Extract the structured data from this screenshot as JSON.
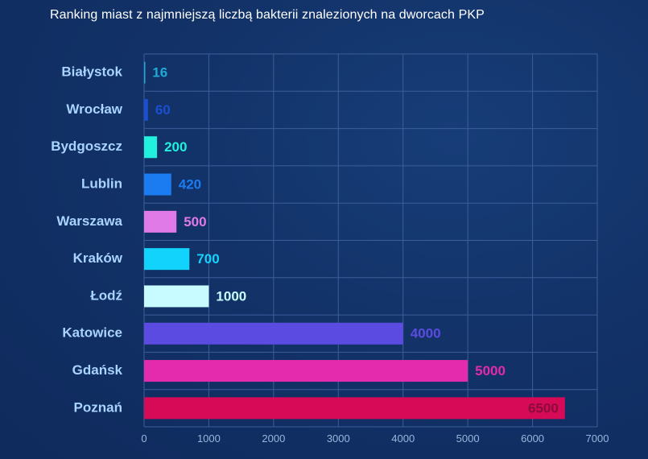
{
  "chart_data": {
    "type": "bar",
    "orientation": "horizontal",
    "title": "Ranking miast z najmniejszą liczbą bakterii znalezionych na dworcach PKP",
    "categories": [
      "Białystok",
      "Wrocław",
      "Bydgoszcz",
      "Lublin",
      "Warszawa",
      "Kraków",
      "Łodź",
      "Katowice",
      "Gdańsk",
      "Poznań"
    ],
    "values": [
      16,
      60,
      200,
      420,
      500,
      700,
      1000,
      4000,
      5000,
      6500
    ],
    "value_labels": [
      "16",
      "60",
      "200",
      "420",
      "500",
      "700",
      "1000",
      "4000",
      "5000",
      "6500"
    ],
    "colors": [
      "#1fa9d6",
      "#1a4fd0",
      "#22f0de",
      "#1b7cf2",
      "#e07ae6",
      "#12d3fb",
      "#c8fbff",
      "#5b4be0",
      "#e42aad",
      "#d60a57"
    ],
    "label_colors": [
      "#1fa9d6",
      "#1a4fd0",
      "#22f0de",
      "#1b7cf2",
      "#e07ae6",
      "#12d3fb",
      "#c8fbff",
      "#5b4be0",
      "#e42aad",
      "#8a0c3c"
    ],
    "xlim": [
      0,
      7000
    ],
    "x_ticks": [
      0,
      1000,
      2000,
      3000,
      4000,
      5000,
      6000,
      7000
    ],
    "grid": true,
    "gridline_color": "#3c5e9a",
    "xlabel": "",
    "ylabel": ""
  }
}
